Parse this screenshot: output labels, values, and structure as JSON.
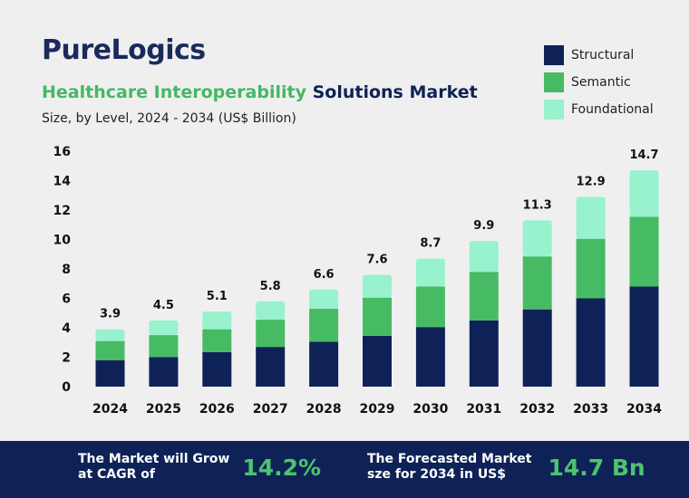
{
  "brand": {
    "logo_text": "PureLogics"
  },
  "header": {
    "title_part1": "Healthcare Interoperability",
    "title_part2": "Solutions Market",
    "subtitle": "Size, by Level, 2024 - 2034 (US$ Billion)"
  },
  "legend": {
    "items": [
      {
        "label": "Structural",
        "color": "#0e2257"
      },
      {
        "label": "Semantic",
        "color": "#46bb64"
      },
      {
        "label": "Foundational",
        "color": "#97f2cd"
      }
    ]
  },
  "chart_data": {
    "type": "bar",
    "stacked": true,
    "categories": [
      "2024",
      "2025",
      "2026",
      "2027",
      "2028",
      "2029",
      "2030",
      "2031",
      "2032",
      "2033",
      "2034"
    ],
    "series": [
      {
        "name": "Structural",
        "color": "#0e2257",
        "values": [
          1.8,
          2.0,
          2.35,
          2.7,
          3.05,
          3.45,
          4.05,
          4.5,
          5.25,
          6.0,
          6.8
        ]
      },
      {
        "name": "Semantic",
        "color": "#46bb64",
        "values": [
          1.3,
          1.5,
          1.55,
          1.85,
          2.25,
          2.6,
          2.75,
          3.3,
          3.6,
          4.05,
          4.75
        ]
      },
      {
        "name": "Foundational",
        "color": "#97f2cd",
        "values": [
          0.8,
          1.0,
          1.2,
          1.25,
          1.3,
          1.55,
          1.9,
          2.1,
          2.45,
          2.85,
          3.15
        ]
      }
    ],
    "totals": [
      "3.9",
      "4.5",
      "5.1",
      "5.8",
      "6.6",
      "7.6",
      "8.7",
      "9.9",
      "11.3",
      "12.9",
      "14.7"
    ],
    "ylim": [
      0,
      16
    ],
    "yticks": [
      "0",
      "2",
      "4",
      "6",
      "8",
      "10",
      "12",
      "14",
      "16"
    ],
    "grid": false,
    "legend_position": "top-right"
  },
  "footer": {
    "cagr_text_line1": "The Market will Grow",
    "cagr_text_line2": "at CAGR of",
    "cagr_value": "14.2%",
    "forecast_text_line1": "The Forecasted Market",
    "forecast_text_line2": "sze for 2034 in US$",
    "forecast_value": "14.7 Bn"
  }
}
